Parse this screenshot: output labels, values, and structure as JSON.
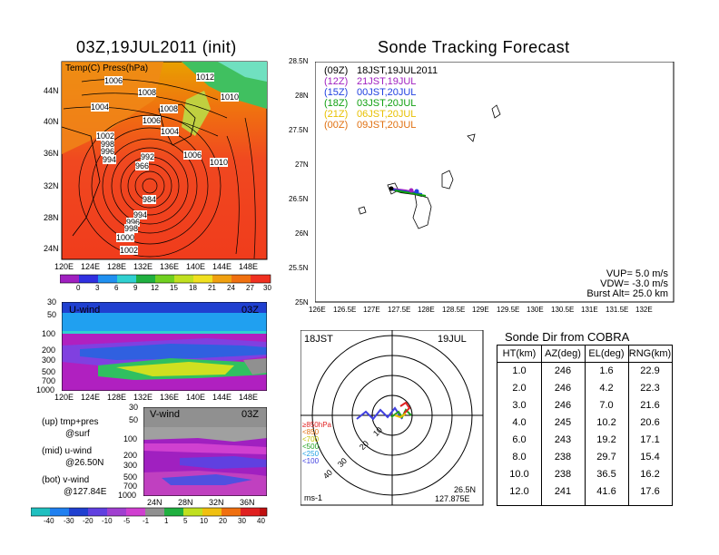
{
  "left_title": "03Z,19JUL2011 (init)",
  "map": {
    "overlay_label": "Temp(C) Press(hPa)",
    "lat_labels": [
      "44N",
      "40N",
      "36N",
      "32N",
      "28N",
      "24N"
    ],
    "lon_labels": [
      "120E",
      "124E",
      "128E",
      "132E",
      "136E",
      "140E",
      "144E",
      "148E"
    ],
    "pressure_labels": [
      "1006",
      "1008",
      "1012",
      "1010",
      "1004",
      "1008",
      "1006",
      "1004",
      "1002",
      "998",
      "996",
      "994",
      "992",
      "966",
      "984",
      "1006",
      "1010",
      "994",
      "996",
      "998",
      "1000",
      "1002"
    ],
    "colorbar_ticks": [
      "0",
      "3",
      "6",
      "9",
      "12",
      "15",
      "18",
      "21",
      "24",
      "27",
      "30"
    ]
  },
  "u_wind": {
    "label": "U-wind",
    "time": "03Z",
    "y_labels": [
      "30",
      "50",
      "100",
      "200",
      "300",
      "500",
      "700",
      "1000"
    ],
    "x_labels": [
      "120E",
      "124E",
      "128E",
      "132E",
      "136E",
      "140E",
      "144E",
      "148E"
    ]
  },
  "v_wind": {
    "label": "V-wind",
    "time": "03Z",
    "y_labels": [
      "30",
      "50",
      "100",
      "200",
      "300",
      "500",
      "700",
      "1000"
    ],
    "x_labels": [
      "24N",
      "28N",
      "32N",
      "36N"
    ]
  },
  "legend_text": {
    "up": "(up) tmp+pres",
    "up2": "@surf",
    "mid": "(mid) u-wind",
    "mid2": "@26.50N",
    "bot": "(bot) v-wind",
    "bot2": "@127.84E"
  },
  "wind_colorbar_ticks": [
    "-40",
    "-30",
    "-20",
    "-10",
    "-5",
    "-1",
    "1",
    "5",
    "10",
    "20",
    "30",
    "40"
  ],
  "tracking": {
    "title": "Sonde Tracking Forecast",
    "lat_labels": [
      "28.5N",
      "28N",
      "27.5N",
      "27N",
      "26.5N",
      "26N",
      "25.5N",
      "25N"
    ],
    "lon_labels": [
      "126E",
      "126.5E",
      "127E",
      "127.5E",
      "128E",
      "128.5E",
      "129E",
      "129.5E",
      "130E",
      "130.5E",
      "131E",
      "131.5E",
      "132E"
    ],
    "legend": [
      {
        "code": "(09Z)",
        "time": "18JST,19JUL2011",
        "color": "#000000"
      },
      {
        "code": "(12Z)",
        "time": "21JST,19JUL",
        "color": "#a020c0"
      },
      {
        "code": "(15Z)",
        "time": "00JST,20JUL",
        "color": "#2040e0"
      },
      {
        "code": "(18Z)",
        "time": "03JST,20JUL",
        "color": "#10a010"
      },
      {
        "code": "(21Z)",
        "time": "06JST,20JUL",
        "color": "#e8c000"
      },
      {
        "code": "(00Z)",
        "time": "09JST,20JUL",
        "color": "#e07010"
      }
    ],
    "params": [
      "VUP= 5.0 m/s",
      "VDW= -3.0 m/s",
      "Burst Alt= 25.0 km"
    ]
  },
  "polar": {
    "time_left": "18JST",
    "date_right": "19JUL",
    "ring_labels": [
      "10",
      "20",
      "30",
      "40"
    ],
    "height_legend": [
      {
        "text": "≥850hPa",
        "color": "#e02020"
      },
      {
        "text": "<850",
        "color": "#e07010"
      },
      {
        "text": "<700",
        "color": "#c0c000"
      },
      {
        "text": "<500",
        "color": "#20a020"
      },
      {
        "text": "<250",
        "color": "#20a0e0"
      },
      {
        "text": "<100",
        "color": "#4040e0"
      }
    ],
    "units": "ms-1",
    "lat": "26.5N",
    "lon": "127.875E"
  },
  "table": {
    "title": "Sonde Dir from COBRA",
    "headers": [
      "HT(km)",
      "AZ(deg)",
      "EL(deg)",
      "RNG(km)"
    ],
    "rows": [
      [
        "1.0",
        "246",
        "1.6",
        "22.9"
      ],
      [
        "2.0",
        "246",
        "4.2",
        "22.3"
      ],
      [
        "3.0",
        "246",
        "7.0",
        "21.6"
      ],
      [
        "4.0",
        "245",
        "10.2",
        "20.6"
      ],
      [
        "6.0",
        "243",
        "19.2",
        "17.1"
      ],
      [
        "8.0",
        "238",
        "29.7",
        "15.4"
      ],
      [
        "10.0",
        "238",
        "36.5",
        "16.2"
      ],
      [
        "12.0",
        "241",
        "41.6",
        "17.6"
      ]
    ]
  }
}
